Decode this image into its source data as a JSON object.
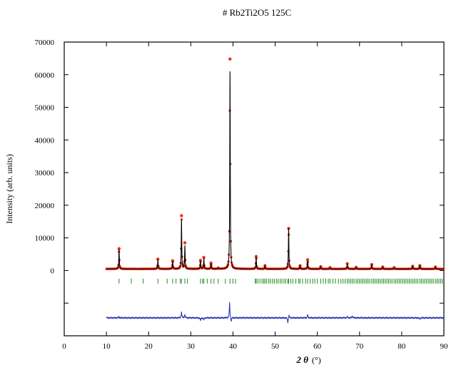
{
  "chart_data": {
    "type": "scatter",
    "title": "# Rb2Ti2O5 125C",
    "xlabel": "2 θ (°)",
    "xlabel_parts": {
      "symbol": "2 θ",
      "unit": "(°)"
    },
    "ylabel": "Intensity (arb. units)",
    "xlim": [
      0,
      90
    ],
    "ylim": [
      -20000,
      70000
    ],
    "x_ticks": [
      0,
      10,
      20,
      30,
      40,
      50,
      60,
      70,
      80,
      90
    ],
    "y_ticks": [
      0,
      10000,
      20000,
      30000,
      40000,
      50000,
      60000,
      70000
    ],
    "y_minor_ticks": [
      -10000
    ],
    "grid": false,
    "legend": "none",
    "colors": {
      "observed": "#e8321e",
      "calculated": "#000000",
      "bragg": "#1e8a1e",
      "difference": "#1f2fb4"
    },
    "background": 500,
    "x_range": [
      10,
      90
    ],
    "series": [
      {
        "role": "observed",
        "peaks": [
          {
            "x": 13.0,
            "y": 6700
          },
          {
            "x": 22.2,
            "y": 3500
          },
          {
            "x": 25.7,
            "y": 3000
          },
          {
            "x": 27.8,
            "y": 16800
          },
          {
            "x": 28.6,
            "y": 8500
          },
          {
            "x": 32.3,
            "y": 3100
          },
          {
            "x": 33.1,
            "y": 4000
          },
          {
            "x": 34.8,
            "y": 2300
          },
          {
            "x": 36.5,
            "y": 800
          },
          {
            "x": 39.3,
            "y": 64800
          },
          {
            "x": 45.5,
            "y": 4300
          },
          {
            "x": 47.6,
            "y": 1500
          },
          {
            "x": 53.2,
            "y": 12900
          },
          {
            "x": 55.9,
            "y": 1500
          },
          {
            "x": 57.7,
            "y": 3300
          },
          {
            "x": 60.8,
            "y": 1200
          },
          {
            "x": 63.0,
            "y": 900
          },
          {
            "x": 67.1,
            "y": 2100
          },
          {
            "x": 69.2,
            "y": 1000
          },
          {
            "x": 72.9,
            "y": 1800
          },
          {
            "x": 75.5,
            "y": 1100
          },
          {
            "x": 78.2,
            "y": 900
          },
          {
            "x": 82.6,
            "y": 1300
          },
          {
            "x": 84.3,
            "y": 1500
          },
          {
            "x": 88.0,
            "y": 1100
          }
        ]
      },
      {
        "role": "calculated",
        "peaks": [
          {
            "x": 13.0,
            "y": 6500
          },
          {
            "x": 22.2,
            "y": 3400
          },
          {
            "x": 25.7,
            "y": 2900
          },
          {
            "x": 27.8,
            "y": 15500
          },
          {
            "x": 28.6,
            "y": 7600
          },
          {
            "x": 32.3,
            "y": 3000
          },
          {
            "x": 33.1,
            "y": 3800
          },
          {
            "x": 34.8,
            "y": 2200
          },
          {
            "x": 36.5,
            "y": 750
          },
          {
            "x": 39.3,
            "y": 61000
          },
          {
            "x": 45.5,
            "y": 4100
          },
          {
            "x": 47.6,
            "y": 1400
          },
          {
            "x": 53.2,
            "y": 13000
          },
          {
            "x": 55.9,
            "y": 1400
          },
          {
            "x": 57.7,
            "y": 3000
          },
          {
            "x": 60.8,
            "y": 1150
          },
          {
            "x": 63.0,
            "y": 850
          },
          {
            "x": 67.1,
            "y": 2000
          },
          {
            "x": 69.2,
            "y": 950
          },
          {
            "x": 72.9,
            "y": 1700
          },
          {
            "x": 75.5,
            "y": 1050
          },
          {
            "x": 78.2,
            "y": 850
          },
          {
            "x": 82.6,
            "y": 1250
          },
          {
            "x": 84.3,
            "y": 1450
          },
          {
            "x": 88.0,
            "y": 1050
          }
        ]
      },
      {
        "role": "bragg_positions",
        "y_from": -2500,
        "y_to": -4000,
        "x": [
          13.0,
          15.9,
          18.7,
          22.2,
          24.4,
          25.7,
          26.5,
          27.5,
          27.8,
          28.6,
          29.2,
          32.3,
          32.8,
          33.1,
          33.9,
          34.8,
          35.5,
          36.5,
          38.2,
          39.3,
          40.0,
          40.6,
          45.3,
          45.5,
          45.9,
          46.4,
          46.9,
          47.3,
          47.6,
          48.0,
          48.5,
          48.9,
          49.4,
          49.8,
          50.3,
          50.7,
          51.2,
          51.6,
          52.1,
          52.5,
          53.0,
          53.2,
          53.7,
          54.2,
          54.9,
          55.6,
          55.9,
          56.5,
          57.2,
          57.7,
          58.3,
          58.9,
          59.4,
          60.0,
          60.8,
          61.4,
          62.0,
          62.6,
          63.0,
          63.7,
          64.3,
          65.0,
          65.6,
          66.1,
          66.6,
          67.1,
          67.5,
          67.9,
          68.3,
          68.7,
          69.2,
          69.6,
          70.0,
          70.4,
          70.8,
          71.2,
          71.6,
          72.0,
          72.4,
          72.9,
          73.3,
          73.7,
          74.1,
          74.5,
          74.9,
          75.3,
          75.7,
          76.1,
          76.5,
          76.9,
          77.3,
          77.7,
          78.2,
          78.6,
          79.0,
          79.4,
          79.8,
          80.2,
          80.6,
          81.0,
          81.4,
          81.8,
          82.2,
          82.6,
          83.0,
          83.4,
          83.8,
          84.3,
          84.7,
          85.1,
          85.5,
          85.9,
          86.3,
          86.7,
          87.1,
          87.5,
          88.0,
          88.4,
          88.8,
          89.2,
          89.6
        ]
      },
      {
        "role": "difference",
        "offset": -14500,
        "spikes": [
          {
            "x": 13.0,
            "y": 300
          },
          {
            "x": 27.8,
            "y": 1800
          },
          {
            "x": 28.6,
            "y": 1100
          },
          {
            "x": 32.3,
            "y": -900
          },
          {
            "x": 33.1,
            "y": -700
          },
          {
            "x": 39.2,
            "y": 4800
          },
          {
            "x": 39.6,
            "y": -1300
          },
          {
            "x": 53.0,
            "y": -1500
          },
          {
            "x": 53.3,
            "y": 900
          },
          {
            "x": 57.7,
            "y": 900
          },
          {
            "x": 67.1,
            "y": 400
          },
          {
            "x": 68.3,
            "y": 600
          },
          {
            "x": 84.3,
            "y": -500
          }
        ]
      }
    ]
  }
}
